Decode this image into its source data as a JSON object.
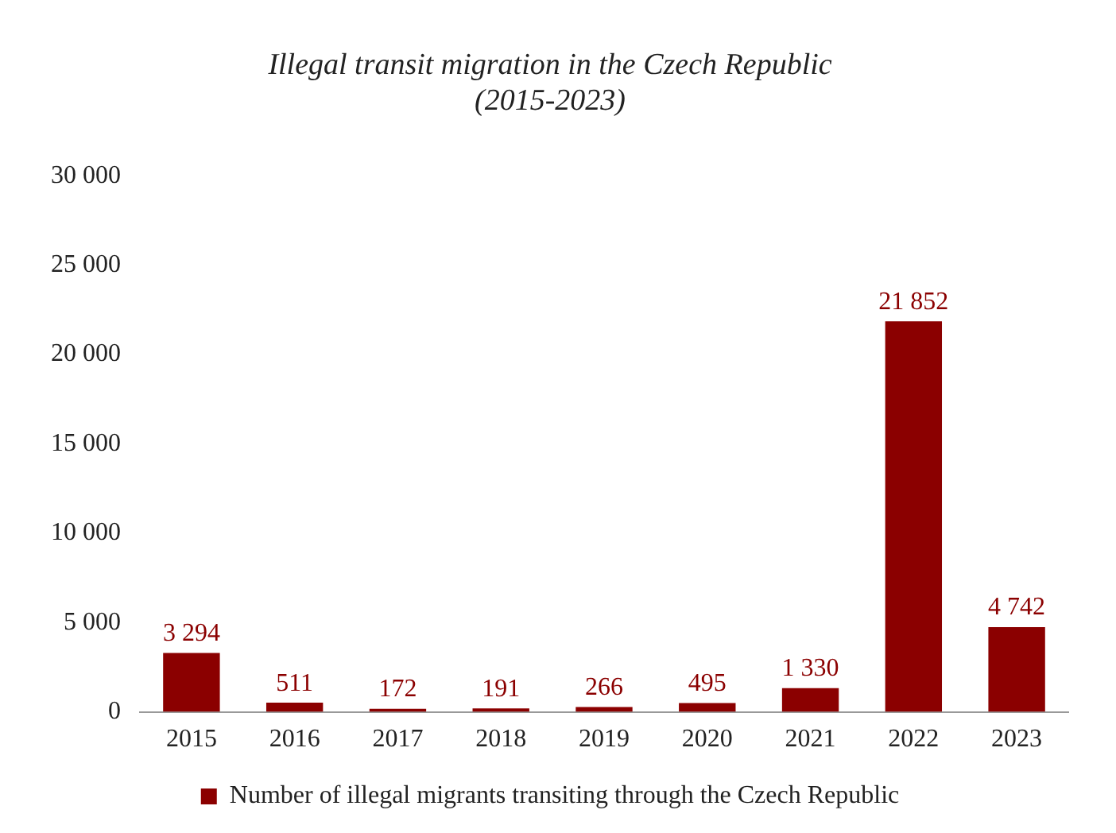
{
  "chart_data": {
    "type": "bar",
    "title": "Illegal transit migration in the Czech Republic",
    "subtitle": "(2015-2023)",
    "categories": [
      "2015",
      "2016",
      "2017",
      "2018",
      "2019",
      "2020",
      "2021",
      "2022",
      "2023"
    ],
    "series": [
      {
        "name": "Number of illegal migrants transiting through the Czech Republic",
        "color": "#8b0000",
        "values": [
          3294,
          511,
          172,
          191,
          266,
          495,
          1330,
          21852,
          4742
        ],
        "value_labels": [
          "3 294",
          "511",
          "172",
          "191",
          "266",
          "495",
          "1 330",
          "21 852",
          "4 742"
        ]
      }
    ],
    "ylim": [
      0,
      30000
    ],
    "yticks": [
      0,
      {
        "value": 5000,
        "label": "5 000"
      },
      {
        "value": 10000,
        "label": "10 000"
      },
      {
        "value": 15000,
        "label": "15 000"
      },
      {
        "value": 20000,
        "label": "20 000"
      },
      {
        "value": 25000,
        "label": "25 000"
      },
      {
        "value": 30000,
        "label": "30 000"
      }
    ],
    "grid": false,
    "legend": "bottom"
  }
}
